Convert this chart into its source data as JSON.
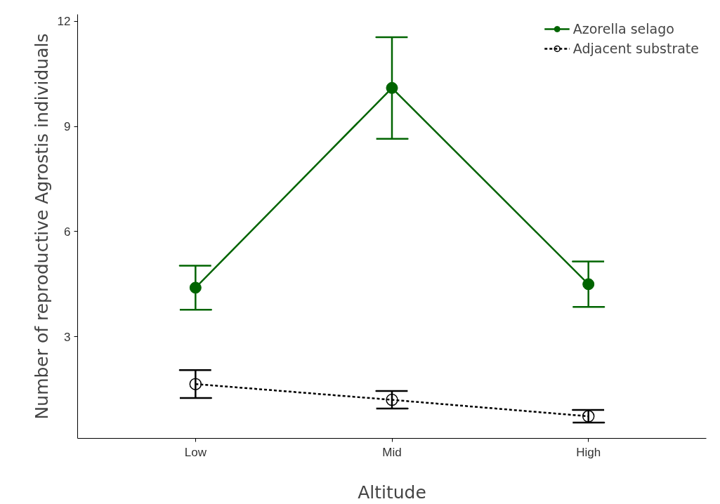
{
  "chart_data": {
    "type": "line",
    "xlabel": "Altitude",
    "ylabel": "Number of reproductive Agrostis individuals",
    "categories": [
      "Low",
      "Mid",
      "High"
    ],
    "series": [
      {
        "name": "Azorella selago",
        "color": "#006400",
        "values": [
          4.4,
          10.1,
          4.5
        ],
        "errors": [
          0.63,
          1.45,
          0.65
        ],
        "marker": "circle",
        "line_style": "solid"
      },
      {
        "name": "Adjacent substrate",
        "color": "#000000",
        "values": [
          1.65,
          1.2,
          0.73
        ],
        "errors": [
          0.4,
          0.25,
          0.18
        ],
        "marker": "circle_open",
        "line_style": "dashed"
      }
    ],
    "ylim": [
      0.1,
      12.2
    ],
    "yticks": [
      3,
      6,
      9,
      12
    ],
    "grid": false,
    "legend": "top right"
  }
}
